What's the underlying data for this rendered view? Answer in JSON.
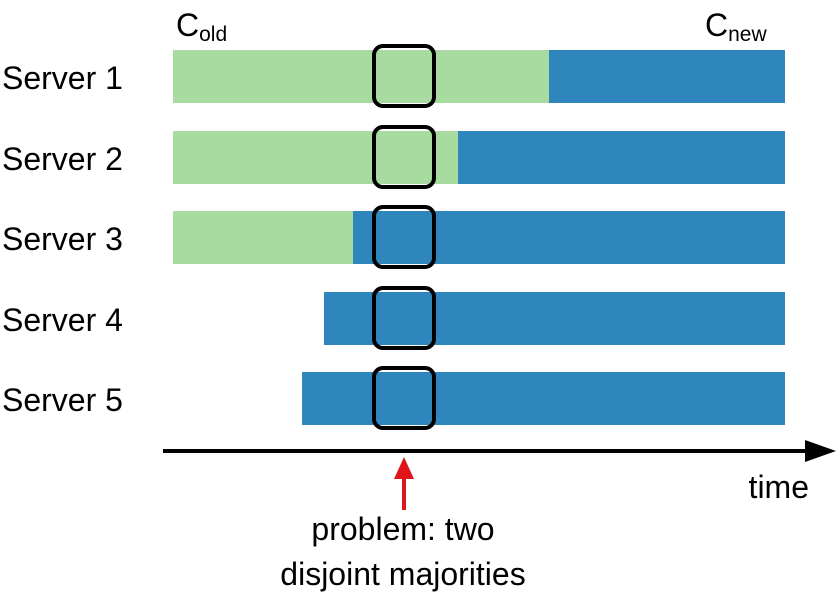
{
  "legend": {
    "old": {
      "base": "C",
      "sub": "old"
    },
    "new": {
      "base": "C",
      "sub": "new"
    }
  },
  "colors": {
    "old": "#a8dba0",
    "new": "#2e86bd",
    "arrow": "#e0151b",
    "frame": "#000000"
  },
  "servers": [
    {
      "label": "Server 1",
      "segments": [
        "old",
        "new"
      ]
    },
    {
      "label": "Server 2",
      "segments": [
        "old",
        "new"
      ]
    },
    {
      "label": "Server 3",
      "segments": [
        "old",
        "new"
      ]
    },
    {
      "label": "Server 4",
      "segments": [
        "new"
      ]
    },
    {
      "label": "Server 5",
      "segments": [
        "new"
      ]
    }
  ],
  "axis": {
    "label": "time"
  },
  "annotation": {
    "line1": "problem: two",
    "line2": "disjoint majorities"
  }
}
